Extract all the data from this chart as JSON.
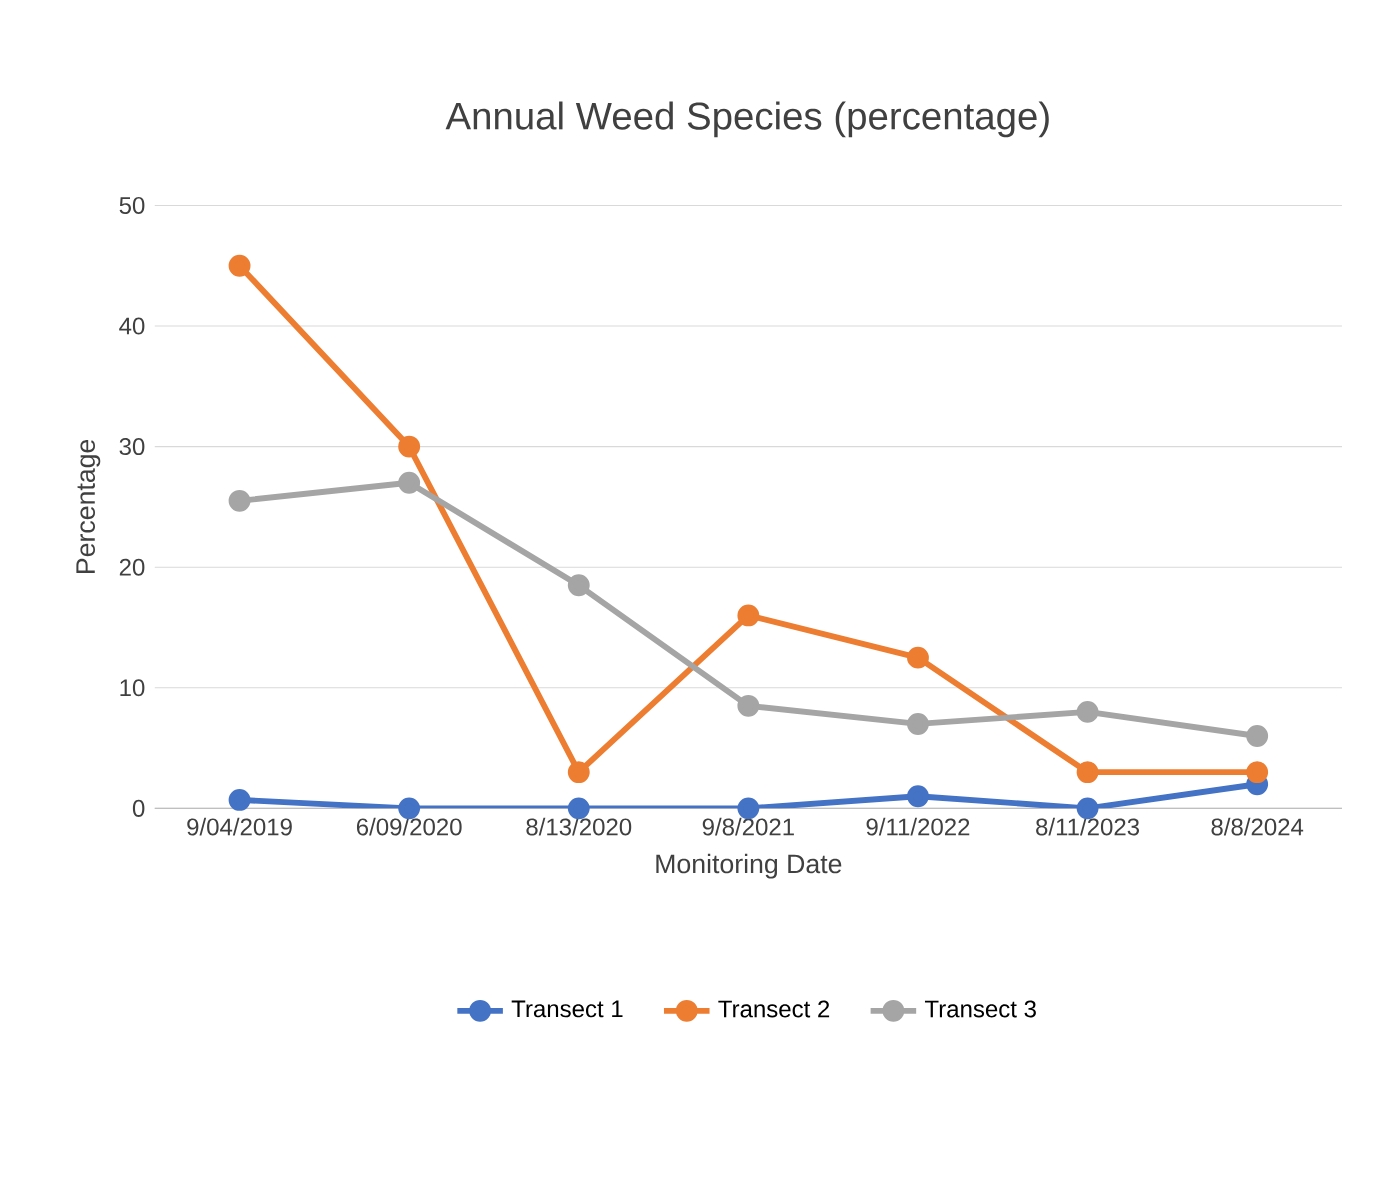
{
  "chart_data": {
    "type": "line",
    "title": "Annual Weed Species (percentage)",
    "xlabel": "Monitoring Date",
    "ylabel": "Percentage",
    "categories": [
      "9/04/2019",
      "6/09/2020",
      "8/13/2020",
      "9/8/2021",
      "9/11/2022",
      "8/11/2023",
      "8/8/2024"
    ],
    "series": [
      {
        "name": "Transect 1",
        "color": "#4472c4",
        "values": [
          0.7,
          0,
          0,
          0,
          1,
          0,
          2
        ]
      },
      {
        "name": "Transect 2",
        "color": "#ed7d31",
        "values": [
          45,
          30,
          3,
          16,
          12.5,
          3,
          3
        ]
      },
      {
        "name": "Transect 3",
        "color": "#a5a5a5",
        "values": [
          25.5,
          27,
          18.5,
          8.5,
          7,
          8,
          6
        ]
      }
    ],
    "ylim": [
      0,
      50
    ],
    "yticks": [
      0,
      10,
      20,
      30,
      40,
      50
    ],
    "grid": "y",
    "legend": "bottom",
    "marker": "circle",
    "line_style": "solid"
  }
}
